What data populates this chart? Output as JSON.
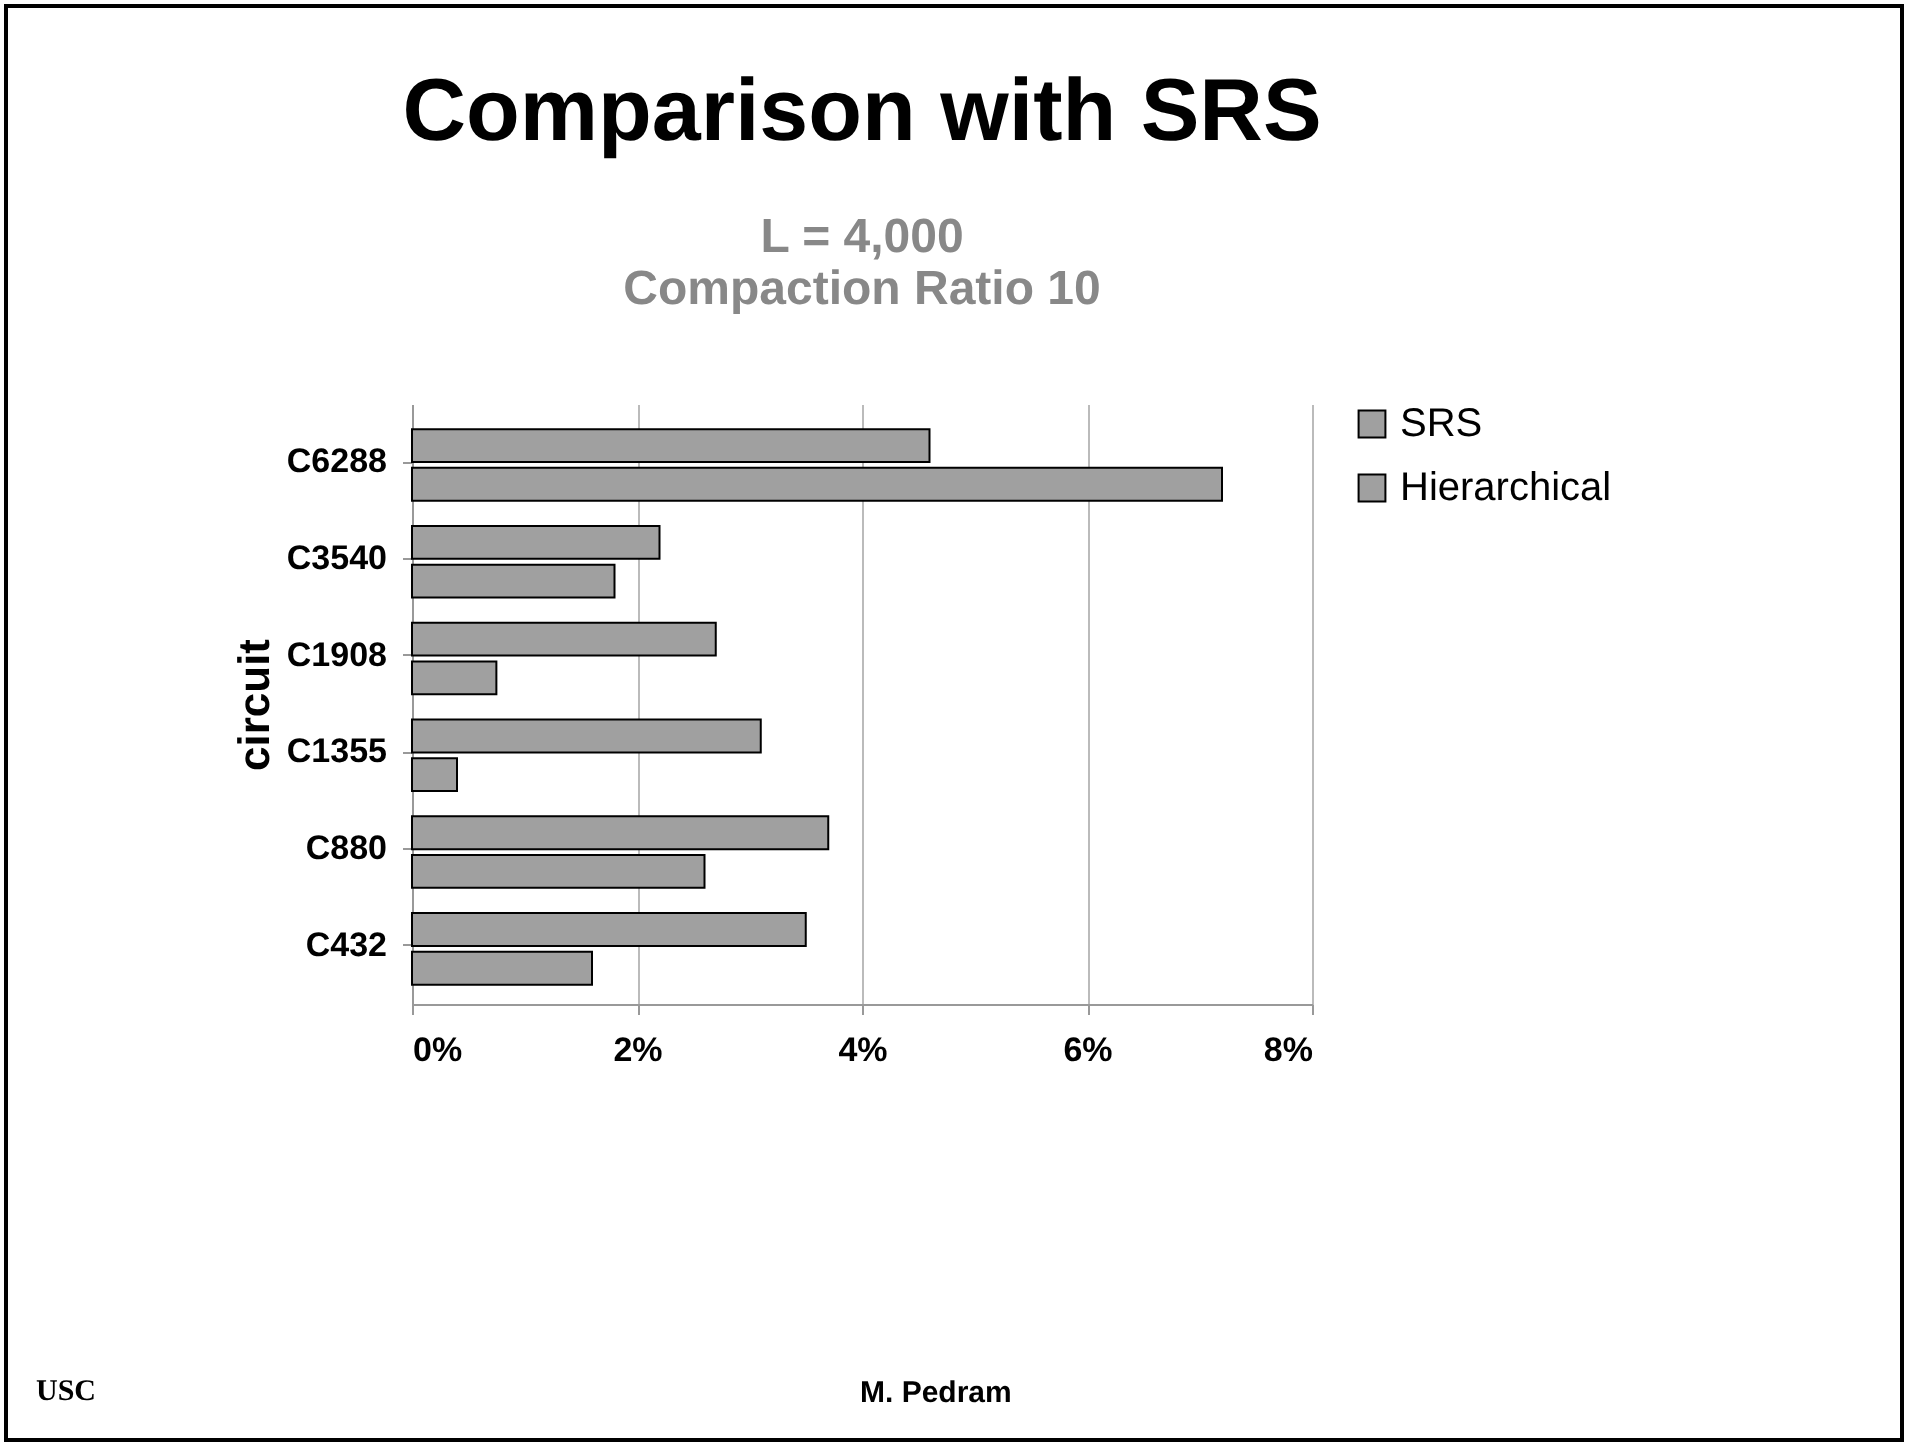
{
  "chart_data": {
    "type": "bar",
    "orientation": "horizontal",
    "title": "Comparison with SRS",
    "subtitle": "L = 4,000\nCompaction Ratio 10",
    "ylabel": "circuit",
    "categories": [
      "C6288",
      "C3540",
      "C1908",
      "C1355",
      "C880",
      "C432"
    ],
    "series": [
      {
        "name": "SRS",
        "color": "#a0a0a0",
        "values": [
          4.6,
          2.2,
          2.7,
          3.1,
          3.7,
          3.5
        ]
      },
      {
        "name": "Hierarchical",
        "color": "#a0a0a0",
        "values": [
          7.2,
          1.8,
          0.75,
          0.4,
          2.6,
          1.6
        ]
      }
    ],
    "xlim": [
      0,
      8
    ],
    "xticks": [
      {
        "value": 0,
        "label": "0%"
      },
      {
        "value": 2,
        "label": "2%"
      },
      {
        "value": 4,
        "label": "4%"
      },
      {
        "value": 6,
        "label": "6%"
      },
      {
        "value": 8,
        "label": "8%"
      }
    ],
    "grid": "x",
    "legend": "right",
    "annotations": [
      "USC",
      "M. Pedram"
    ]
  }
}
